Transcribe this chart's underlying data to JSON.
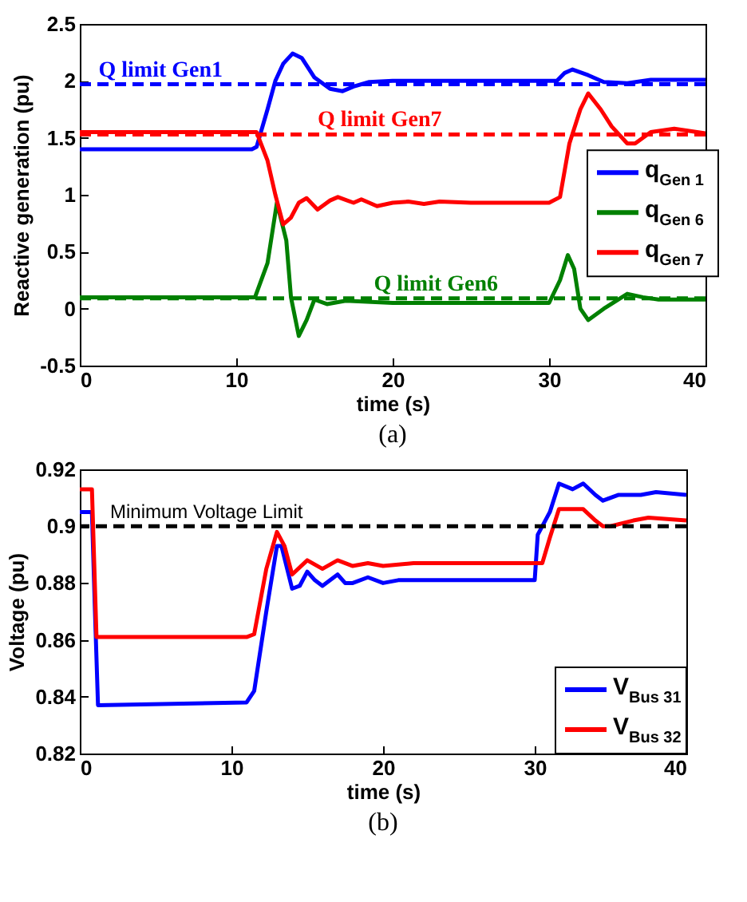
{
  "chart_data": [
    {
      "type": "line",
      "xlabel": "time (s)",
      "ylabel": "Reactive generation (pu)",
      "annotations": [
        "(a)"
      ],
      "xlim": [
        0,
        40
      ],
      "xticks": [
        0,
        10,
        20,
        30,
        40
      ],
      "ylim": [
        -0.5,
        2.5
      ],
      "yticks": [
        -0.5,
        0,
        0.5,
        1,
        1.5,
        2,
        2.5
      ],
      "grid": false,
      "legend": "right",
      "line_style": "solid",
      "marker": "none",
      "ref_lines": [
        {
          "axis": "y",
          "value": 1.97,
          "label": "Q limit Gen1",
          "color": "#0000ff",
          "line_style": "dashed"
        },
        {
          "axis": "y",
          "value": 1.53,
          "label": "Q limit Gen7",
          "color": "#ff0000",
          "line_style": "dashed"
        },
        {
          "axis": "y",
          "value": 0.09,
          "label": "Q limit Gen6",
          "color": "#008000",
          "line_style": "dashed"
        }
      ],
      "series": [
        {
          "name": "q$_{Gen 1}$",
          "color": "#0000ff",
          "x": [
            0,
            11,
            11.3,
            12,
            12.5,
            13,
            13.6,
            14.2,
            15,
            16,
            16.8,
            17.5,
            18.5,
            20,
            30.5,
            31,
            31.5,
            32.5,
            33.5,
            35,
            36.5,
            40
          ],
          "values": [
            1.4,
            1.4,
            1.42,
            1.75,
            2.0,
            2.15,
            2.24,
            2.2,
            2.03,
            1.93,
            1.91,
            1.95,
            1.99,
            2.0,
            2.0,
            2.07,
            2.1,
            2.05,
            1.99,
            1.98,
            2.01,
            2.01
          ]
        },
        {
          "name": "q$_{Gen 6}$",
          "color": "#008000",
          "x": [
            0,
            11.2,
            12,
            12.6,
            13.2,
            13.5,
            14,
            14.5,
            15,
            15.8,
            17,
            20,
            30,
            30.7,
            31.2,
            31.6,
            32,
            32.5,
            33.5,
            35,
            36,
            37,
            40
          ],
          "values": [
            0.1,
            0.1,
            0.4,
            0.93,
            0.6,
            0.1,
            -0.24,
            -0.1,
            0.08,
            0.04,
            0.07,
            0.05,
            0.05,
            0.25,
            0.47,
            0.35,
            0.0,
            -0.1,
            0.0,
            0.13,
            0.1,
            0.08,
            0.08
          ]
        },
        {
          "name": "q$_{Gen 7}$",
          "color": "#ff0000",
          "x": [
            0,
            11.3,
            12,
            12.5,
            13,
            13.5,
            14,
            14.5,
            15.2,
            16,
            16.5,
            17.5,
            18,
            19,
            20,
            21,
            22,
            23,
            25,
            30,
            30.7,
            31.3,
            32,
            32.5,
            33.3,
            34,
            35,
            35.5,
            36.5,
            38,
            40
          ],
          "values": [
            1.55,
            1.55,
            1.3,
            1.0,
            0.74,
            0.8,
            0.93,
            0.97,
            0.87,
            0.95,
            0.98,
            0.93,
            0.96,
            0.9,
            0.93,
            0.94,
            0.92,
            0.94,
            0.93,
            0.93,
            0.98,
            1.45,
            1.75,
            1.89,
            1.75,
            1.6,
            1.45,
            1.45,
            1.55,
            1.58,
            1.54
          ]
        }
      ]
    },
    {
      "type": "line",
      "xlabel": "time (s)",
      "ylabel": "Voltage (pu)",
      "annotations": [
        "(b)"
      ],
      "xlim": [
        0,
        40
      ],
      "xticks": [
        0,
        10,
        20,
        30,
        40
      ],
      "ylim": [
        0.82,
        0.92
      ],
      "yticks": [
        0.82,
        0.84,
        0.86,
        0.88,
        0.9,
        0.92
      ],
      "grid": false,
      "legend": "bottom right",
      "line_style": "solid",
      "marker": "none",
      "ref_lines": [
        {
          "axis": "y",
          "value": 0.9,
          "label": "Minimum Voltage Limit",
          "color": "#000000",
          "line_style": "dashed"
        }
      ],
      "series": [
        {
          "name": "V$_{Bus 31}$",
          "color": "#0000ff",
          "x": [
            0,
            0.8,
            1.0,
            1.2,
            11,
            11.5,
            12.3,
            13,
            13.3,
            14,
            14.5,
            15,
            15.5,
            16,
            17,
            17.5,
            18,
            19,
            20,
            21,
            22,
            30,
            30.2,
            31,
            31.6,
            32.5,
            33.2,
            34,
            34.5,
            35.5,
            37,
            38,
            40
          ],
          "values": [
            0.905,
            0.905,
            0.87,
            0.837,
            0.838,
            0.842,
            0.87,
            0.893,
            0.893,
            0.878,
            0.879,
            0.884,
            0.881,
            0.879,
            0.883,
            0.88,
            0.88,
            0.882,
            0.88,
            0.881,
            0.881,
            0.881,
            0.897,
            0.905,
            0.915,
            0.913,
            0.915,
            0.911,
            0.909,
            0.911,
            0.911,
            0.912,
            0.911
          ]
        },
        {
          "name": "V$_{Bus 32}$",
          "color": "#ff0000",
          "x": [
            0,
            0.8,
            1.1,
            11,
            11.5,
            12.3,
            13,
            13.5,
            14,
            15,
            16,
            17,
            18,
            19,
            20,
            22,
            30.5,
            31,
            31.6,
            33.2,
            34,
            34.5,
            35,
            36.5,
            37.5,
            40
          ],
          "values": [
            0.913,
            0.913,
            0.861,
            0.861,
            0.862,
            0.885,
            0.898,
            0.893,
            0.883,
            0.888,
            0.885,
            0.888,
            0.886,
            0.887,
            0.886,
            0.887,
            0.887,
            0.896,
            0.906,
            0.906,
            0.902,
            0.9,
            0.9,
            0.902,
            0.903,
            0.902
          ]
        }
      ]
    }
  ]
}
